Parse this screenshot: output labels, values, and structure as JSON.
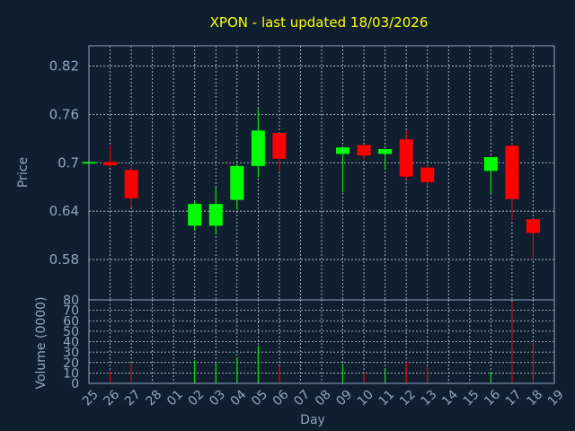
{
  "chart_data": {
    "type": "candlestick",
    "title": "XPON - last updated 18/03/2026",
    "price_panel": {
      "ylabel": "Price",
      "ylim": [
        0.53,
        0.845
      ],
      "yticks": [
        "0.82",
        "0.76",
        "0.7",
        "0.64",
        "0.58"
      ],
      "ytick_values": [
        0.82,
        0.76,
        0.7,
        0.64,
        0.58
      ],
      "grid": true
    },
    "volume_panel": {
      "ylabel": "Volume (0000)",
      "ylim": [
        0,
        80
      ],
      "yticks": [
        "80",
        "70",
        "60",
        "50",
        "40",
        "30",
        "20",
        "10",
        "0"
      ],
      "ytick_values": [
        80,
        70,
        60,
        50,
        40,
        30,
        20,
        10,
        0
      ],
      "grid": true
    },
    "xlabel": "Day",
    "categories": [
      "25",
      "26",
      "27",
      "28",
      "01",
      "02",
      "03",
      "04",
      "05",
      "06",
      "07",
      "08",
      "09",
      "10",
      "11",
      "12",
      "13",
      "14",
      "15",
      "16",
      "17",
      "18",
      "19"
    ],
    "candles": [
      {
        "day": "25",
        "open": 0.699,
        "close": 0.701,
        "high": 0.701,
        "low": 0.699,
        "volume": 0
      },
      {
        "day": "26",
        "open": 0.701,
        "close": 0.697,
        "high": 0.721,
        "low": 0.694,
        "volume": 12
      },
      {
        "day": "27",
        "open": 0.691,
        "close": 0.656,
        "high": 0.697,
        "low": 0.645,
        "volume": 20
      },
      {
        "day": "02",
        "open": 0.622,
        "close": 0.649,
        "high": 0.652,
        "low": 0.616,
        "volume": 22
      },
      {
        "day": "03",
        "open": 0.622,
        "close": 0.649,
        "high": 0.67,
        "low": 0.612,
        "volume": 21
      },
      {
        "day": "04",
        "open": 0.654,
        "close": 0.696,
        "high": 0.698,
        "low": 0.642,
        "volume": 25
      },
      {
        "day": "05",
        "open": 0.696,
        "close": 0.74,
        "high": 0.767,
        "low": 0.682,
        "volume": 36
      },
      {
        "day": "06",
        "open": 0.737,
        "close": 0.705,
        "high": 0.737,
        "low": 0.69,
        "volume": 16
      },
      {
        "day": "09",
        "open": 0.711,
        "close": 0.719,
        "high": 0.719,
        "low": 0.663,
        "volume": 19
      },
      {
        "day": "10",
        "open": 0.722,
        "close": 0.709,
        "high": 0.722,
        "low": 0.704,
        "volume": 10
      },
      {
        "day": "11",
        "open": 0.711,
        "close": 0.717,
        "high": 0.717,
        "low": 0.692,
        "volume": 14
      },
      {
        "day": "12",
        "open": 0.729,
        "close": 0.683,
        "high": 0.74,
        "low": 0.679,
        "volume": 21
      },
      {
        "day": "13",
        "open": 0.694,
        "close": 0.676,
        "high": 0.698,
        "low": 0.672,
        "volume": 16
      },
      {
        "day": "16",
        "open": 0.69,
        "close": 0.707,
        "high": 0.707,
        "low": 0.662,
        "volume": 11
      },
      {
        "day": "17",
        "open": 0.721,
        "close": 0.655,
        "high": 0.724,
        "low": 0.629,
        "volume": 78
      },
      {
        "day": "18",
        "open": 0.63,
        "close": 0.613,
        "high": 0.63,
        "low": 0.58,
        "volume": 40
      }
    ],
    "colors": {
      "background": "#0f1f30",
      "frame": "#8fa6c0",
      "grid": "#c8d0dc",
      "up": "#00ff00",
      "down": "#ff0000",
      "title": "#ffff00",
      "labels": "#8fa6c0"
    }
  }
}
